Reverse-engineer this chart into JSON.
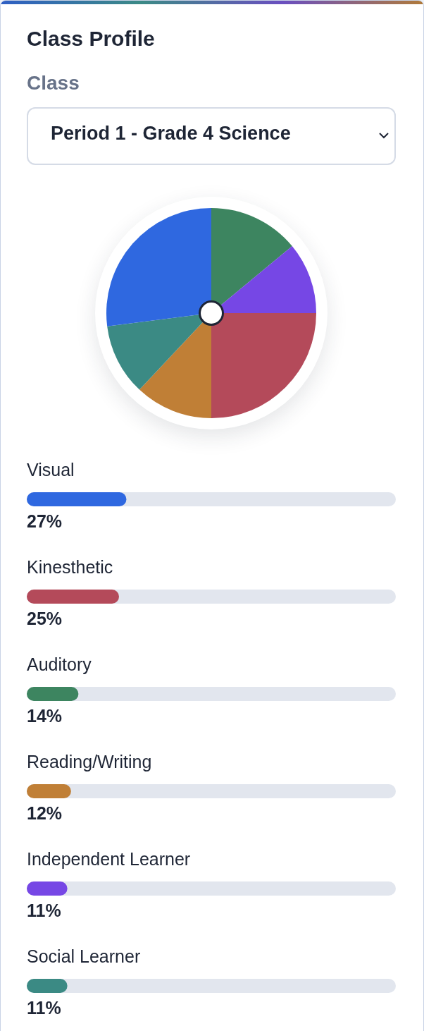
{
  "chart_data": [
    {
      "type": "pie",
      "title": "Class Profile",
      "annotations": [
        "Class",
        "Period 1 - Grade 4 Science"
      ],
      "categories": [
        null,
        null,
        null,
        null,
        null,
        null
      ],
      "values": [
        14,
        11,
        25,
        12,
        11,
        27
      ],
      "colors": [
        "#3d8560",
        "#7647e5",
        "#b44a5a",
        "#c07f36",
        "#3b8a84",
        "#2f68e0"
      ]
    },
    {
      "type": "bar",
      "orientation": "horizontal",
      "tick_labels": "y",
      "categories": [
        "Visual",
        "Kinesthetic",
        "Auditory",
        "Reading/Writing",
        "Independent Learner",
        "Social Learner"
      ],
      "values": [
        27,
        25,
        14,
        12,
        11,
        11
      ],
      "colors": [
        "#2f68e0",
        "#b44a5a",
        "#3d8560",
        "#c07f36",
        "#7647e5",
        "#3b8a84"
      ],
      "value_labels": [
        "27%",
        "25%",
        "14%",
        "12%",
        "11%",
        "11%"
      ],
      "xlim": [
        0,
        100
      ]
    }
  ]
}
